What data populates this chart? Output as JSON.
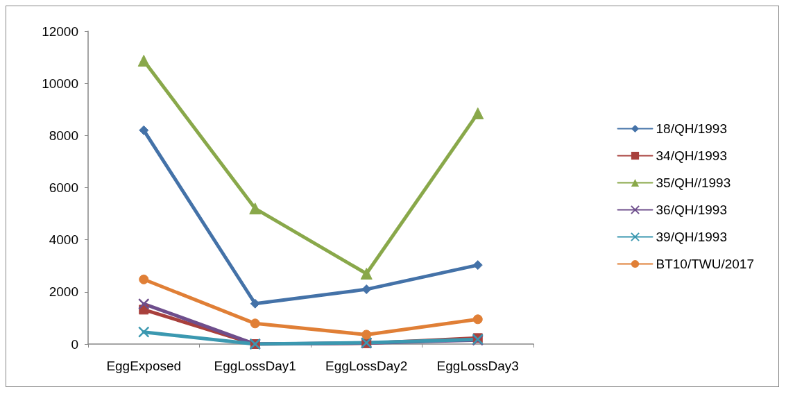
{
  "chart_data": {
    "type": "line",
    "categories": [
      "EggExposed",
      "EggLossDay1",
      "EggLossDay2",
      "EggLossDay3"
    ],
    "ylim": [
      0,
      12000
    ],
    "yticks": [
      0,
      2000,
      4000,
      6000,
      8000,
      10000,
      12000
    ],
    "grid": false,
    "legend": "right",
    "series": [
      {
        "name": "18/QH/1993",
        "color": "#4472a8",
        "marker": "diamond",
        "values": [
          8200,
          1550,
          2100,
          3030
        ]
      },
      {
        "name": "34/QH/1993",
        "color": "#a8403c",
        "marker": "square",
        "values": [
          1320,
          0,
          30,
          230
        ]
      },
      {
        "name": "35/QH//1993",
        "color": "#89a84a",
        "marker": "triangle",
        "values": [
          10870,
          5200,
          2700,
          8850
        ]
      },
      {
        "name": "36/QH/1993",
        "color": "#6e4e8c",
        "marker": "cross",
        "values": [
          1540,
          0,
          40,
          150
        ]
      },
      {
        "name": "39/QH/1993",
        "color": "#3b98b0",
        "marker": "cross",
        "values": [
          460,
          0,
          50,
          180
        ]
      },
      {
        "name": "BT10/TWU/2017",
        "color": "#e07f36",
        "marker": "circle",
        "values": [
          2480,
          790,
          360,
          950
        ]
      }
    ]
  }
}
